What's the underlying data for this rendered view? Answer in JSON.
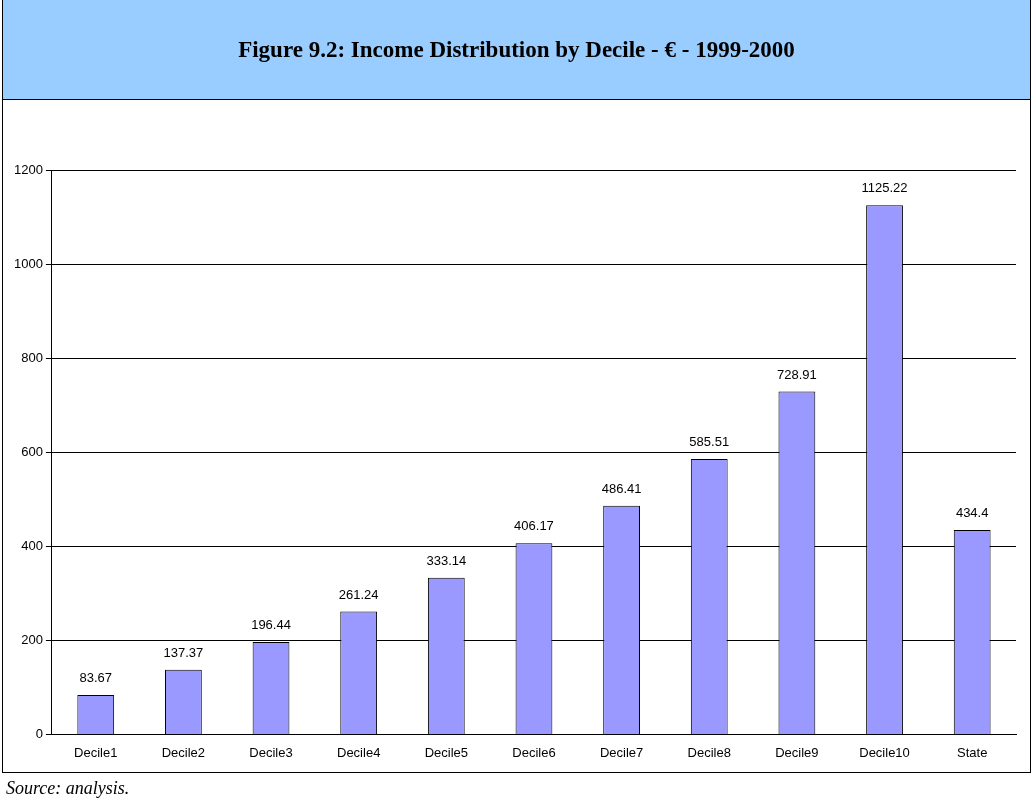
{
  "chart_data": {
    "type": "bar",
    "title": "Figure 9.2:  Income Distribution by Decile - € - 1999-2000",
    "categories": [
      "Decile1",
      "Decile2",
      "Decile3",
      "Decile4",
      "Decile5",
      "Decile6",
      "Decile7",
      "Decile8",
      "Decile9",
      "Decile10",
      "State"
    ],
    "values": [
      83.67,
      137.37,
      196.44,
      261.24,
      333.14,
      406.17,
      486.41,
      585.51,
      728.91,
      1125.22,
      434.4
    ],
    "color": "#9999ff",
    "ylim": [
      0,
      1200
    ],
    "yticks": [
      0,
      200,
      400,
      600,
      800,
      1000,
      1200
    ],
    "grid": "y",
    "data_labels": true,
    "legend": false,
    "annotations": [
      "Source: analysis."
    ]
  }
}
